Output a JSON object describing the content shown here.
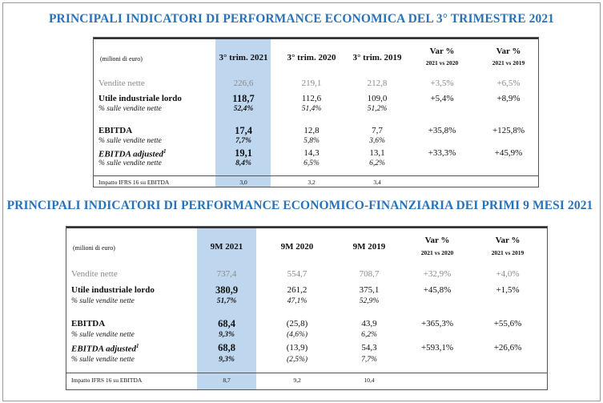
{
  "q3": {
    "title": "PRINCIPALI INDICATORI DI PERFORMANCE ECONOMICA DEL 3° TRIMESTRE 2021",
    "unit": "(milioni di euro)",
    "columns": [
      "3° trim. 2021",
      "3° trim. 2020",
      "3° trim. 2019"
    ],
    "var_headers": [
      {
        "label": "Var %",
        "sub": "2021 vs 2020"
      },
      {
        "label": "Var %",
        "sub": "2021 vs 2019"
      }
    ],
    "rows": [
      {
        "label": "Vendite nette",
        "values": [
          "226,6",
          "219,1",
          "212,8"
        ],
        "vars": [
          "+3,5%",
          "+6,5%"
        ]
      },
      {
        "label": "Utile industriale lordo",
        "values": [
          "118,7",
          "112,6",
          "109,0"
        ],
        "vars": [
          "+5,4%",
          "+8,9%"
        ]
      },
      {
        "label": "% sulle vendite nette",
        "values": [
          "52,4%",
          "51,4%",
          "51,2%"
        ],
        "vars": [
          "",
          ""
        ]
      },
      {
        "label": "EBITDA",
        "values": [
          "17,4",
          "12,8",
          "7,7"
        ],
        "vars": [
          "+35,8%",
          "+125,8%"
        ]
      },
      {
        "label": "% sulle vendite nette",
        "values": [
          "7,7%",
          "5,8%",
          "3,6%"
        ],
        "vars": [
          "",
          ""
        ]
      },
      {
        "label": "EBITDA adjusted",
        "label_sup": "1",
        "values": [
          "19,1",
          "14,3",
          "13,1"
        ],
        "vars": [
          "+33,3%",
          "+45,9%"
        ]
      },
      {
        "label": "% sulle vendite nette",
        "values": [
          "8,4%",
          "6,5%",
          "6,2%"
        ],
        "vars": [
          "",
          ""
        ]
      }
    ],
    "footer": {
      "label": "Impatto IFRS 16 su EBITDA",
      "values": [
        "3,0",
        "3,2",
        "3,4"
      ]
    }
  },
  "m9": {
    "title": "PRINCIPALI INDICATORI DI PERFORMANCE ECONOMICO-FINANZIARIA DEI PRIMI 9 MESI 2021",
    "unit": "(milioni di euro)",
    "columns": [
      "9M 2021",
      "9M 2020",
      "9M 2019"
    ],
    "var_headers": [
      {
        "label": "Var %",
        "sub": "2021 vs 2020"
      },
      {
        "label": "Var %",
        "sub": "2021 vs 2019"
      }
    ],
    "rows": [
      {
        "label": "Vendite nette",
        "values": [
          "737,4",
          "554,7",
          "708,7"
        ],
        "vars": [
          "+32,9%",
          "+4,0%"
        ]
      },
      {
        "label": "Utile industriale lordo",
        "values": [
          "380,9",
          "261,2",
          "375,1"
        ],
        "vars": [
          "+45,8%",
          "+1,5%"
        ]
      },
      {
        "label": "% sulle vendite nette",
        "values": [
          "51,7%",
          "47,1%",
          "52,9%"
        ],
        "vars": [
          "",
          ""
        ]
      },
      {
        "label": "EBITDA",
        "values": [
          "68,4",
          "(25,8)",
          "43,9"
        ],
        "vars": [
          "+365,3%",
          "+55,6%"
        ]
      },
      {
        "label": "% sulle vendite nette",
        "values": [
          "9,3%",
          "(4,6%)",
          "6,2%"
        ],
        "vars": [
          "",
          ""
        ]
      },
      {
        "label": "EBITDA adjusted",
        "label_sup": "1",
        "values": [
          "68,8",
          "(13,9)",
          "54,3"
        ],
        "vars": [
          "+593,1%",
          "+26,6%"
        ]
      },
      {
        "label": "% sulle vendite nette",
        "values": [
          "9,3%",
          "(2,5%)",
          "7,7%"
        ],
        "vars": [
          "",
          ""
        ]
      }
    ],
    "footer": {
      "label": "Impatto IFRS 16 su EBITDA",
      "values": [
        "8,7",
        "9,2",
        "10,4"
      ]
    }
  }
}
